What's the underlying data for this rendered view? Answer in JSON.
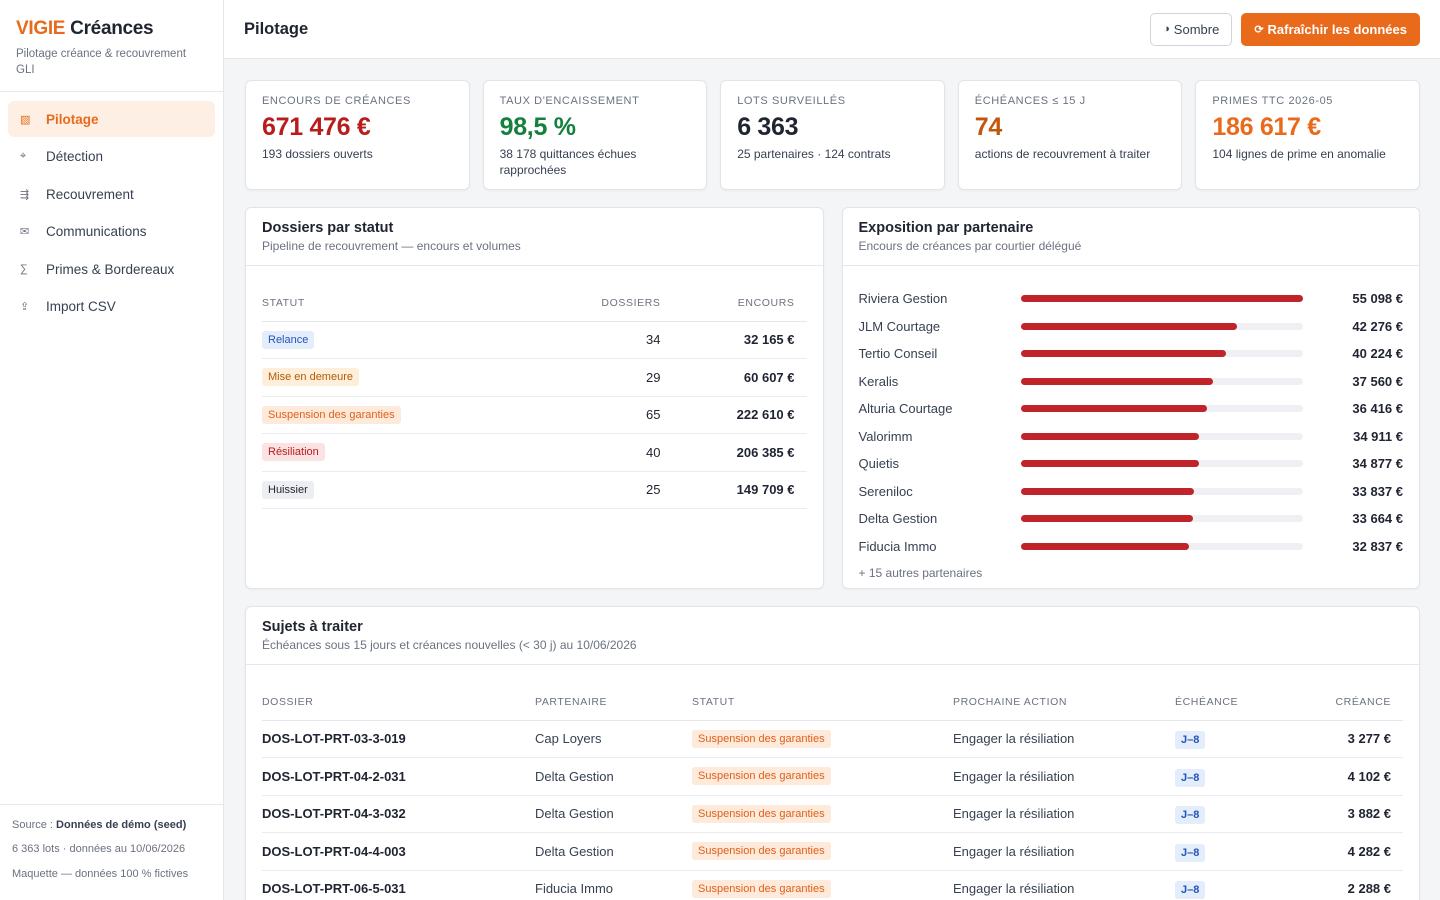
{
  "brand": {
    "accent": "VIGIE",
    "name": "Créances",
    "subtitle": "Pilotage créance & recouvrement GLI"
  },
  "nav": [
    {
      "label": "Pilotage",
      "icon": "▧",
      "name": "dashboard-icon",
      "active": true
    },
    {
      "label": "Détection",
      "icon": "⌖",
      "name": "target-icon",
      "active": false
    },
    {
      "label": "Recouvrement",
      "icon": "⇶",
      "name": "recovery-icon",
      "active": false
    },
    {
      "label": "Communications",
      "icon": "✉",
      "name": "mail-icon",
      "active": false
    },
    {
      "label": "Primes & Bordereaux",
      "icon": "∑",
      "name": "sum-icon",
      "active": false
    },
    {
      "label": "Import CSV",
      "icon": "⇪",
      "name": "upload-icon",
      "active": false
    }
  ],
  "footer": {
    "source_label": "Source : ",
    "source_value": "Données de démo (seed)",
    "lots": "6 363 lots · données au 10/06/2026",
    "note": "Maquette — données 100 % fictives"
  },
  "topbar": {
    "title": "Pilotage",
    "dark_icon": "◑",
    "dark_label": "Sombre",
    "refresh_icon": "⟳",
    "refresh_label": "Rafraîchir les données"
  },
  "colors": {
    "accent": "#ea6a1c",
    "red": "#b91c1c",
    "green": "#15803d",
    "dark": "#1f2430",
    "amber": "#c2560c"
  },
  "kpis": [
    {
      "label": "Encours de créances",
      "value": "671 476 €",
      "sub": "193 dossiers ouverts",
      "color": "#b91c1c"
    },
    {
      "label": "Taux d'encaissement",
      "value": "98,5 %",
      "sub": "38 178 quittances échues rapprochées",
      "color": "#15803d"
    },
    {
      "label": "Lots surveillés",
      "value": "6 363",
      "sub": "25 partenaires · 124 contrats",
      "color": "#1f2430"
    },
    {
      "label": "Échéances ≤ 15 j",
      "value": "74",
      "sub": "actions de recouvrement à traiter",
      "color": "#c2560c"
    },
    {
      "label": "Primes TTC 2026-05",
      "value": "186 617 €",
      "sub": "104 lignes de prime en anomalie",
      "color": "#ea6a1c"
    }
  ],
  "status_card": {
    "title": "Dossiers par statut",
    "subtitle": "Pipeline de recouvrement — encours et volumes",
    "headers": [
      "Statut",
      "Dossiers",
      "Encours"
    ],
    "rows": [
      {
        "status": "Relance",
        "tone": "blue",
        "count": "34",
        "amount": "32 165 €"
      },
      {
        "status": "Mise en demeure",
        "tone": "amber",
        "count": "29",
        "amount": "60 607 €"
      },
      {
        "status": "Suspension des garanties",
        "tone": "orange",
        "count": "65",
        "amount": "222 610 €"
      },
      {
        "status": "Résiliation",
        "tone": "red",
        "count": "40",
        "amount": "206 385 €"
      },
      {
        "status": "Huissier",
        "tone": "gray",
        "count": "25",
        "amount": "149 709 €"
      }
    ]
  },
  "exposure_card": {
    "title": "Exposition par partenaire",
    "subtitle": "Encours de créances par courtier délégué",
    "max": 55098,
    "rows": [
      {
        "name": "Riviera Gestion",
        "value": 55098,
        "label": "55 098 €"
      },
      {
        "name": "JLM Courtage",
        "value": 42276,
        "label": "42 276 €"
      },
      {
        "name": "Tertio Conseil",
        "value": 40224,
        "label": "40 224 €"
      },
      {
        "name": "Keralis",
        "value": 37560,
        "label": "37 560 €"
      },
      {
        "name": "Alturia Courtage",
        "value": 36416,
        "label": "36 416 €"
      },
      {
        "name": "Valorimm",
        "value": 34911,
        "label": "34 911 €"
      },
      {
        "name": "Quietis",
        "value": 34877,
        "label": "34 877 €"
      },
      {
        "name": "Sereniloc",
        "value": 33837,
        "label": "33 837 €"
      },
      {
        "name": "Delta Gestion",
        "value": 33664,
        "label": "33 664 €"
      },
      {
        "name": "Fiducia Immo",
        "value": 32837,
        "label": "32 837 €"
      }
    ],
    "more": "+ 15 autres partenaires"
  },
  "todo_card": {
    "title": "Sujets à traiter",
    "subtitle": "Échéances sous 15 jours et créances nouvelles (< 30 j) au 10/06/2026",
    "headers": [
      "Dossier",
      "Partenaire",
      "Statut",
      "Prochaine action",
      "Échéance",
      "Créance"
    ],
    "rows": [
      {
        "dossier": "DOS-LOT-PRT-03-3-019",
        "partner": "Cap Loyers",
        "status": "Suspension des garanties",
        "action": "Engager la résiliation",
        "due": "J–8",
        "amount": "3 277 €"
      },
      {
        "dossier": "DOS-LOT-PRT-04-2-031",
        "partner": "Delta Gestion",
        "status": "Suspension des garanties",
        "action": "Engager la résiliation",
        "due": "J–8",
        "amount": "4 102 €"
      },
      {
        "dossier": "DOS-LOT-PRT-04-3-032",
        "partner": "Delta Gestion",
        "status": "Suspension des garanties",
        "action": "Engager la résiliation",
        "due": "J–8",
        "amount": "3 882 €"
      },
      {
        "dossier": "DOS-LOT-PRT-04-4-003",
        "partner": "Delta Gestion",
        "status": "Suspension des garanties",
        "action": "Engager la résiliation",
        "due": "J–8",
        "amount": "4 282 €"
      },
      {
        "dossier": "DOS-LOT-PRT-06-5-031",
        "partner": "Fiducia Immo",
        "status": "Suspension des garanties",
        "action": "Engager la résiliation",
        "due": "J–8",
        "amount": "2 288 €"
      }
    ]
  }
}
